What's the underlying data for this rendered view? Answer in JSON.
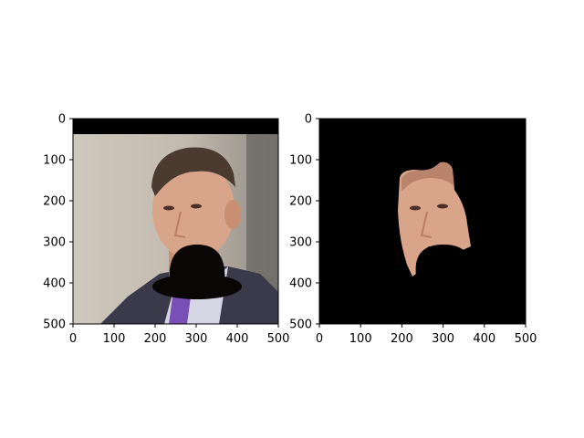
{
  "colors": {
    "background": "#ffffff",
    "axis": "#000000",
    "mask_fill": "#000000",
    "hat_fill": "#0b0606",
    "photo_top": "#c7c0b5",
    "photo_bottom": "#b9b2a5",
    "wall_dark": "#6f6b66",
    "suit": "#3b3a4a",
    "shirt": "#d6d5e3",
    "tie": "#7a4fb5",
    "skin": "#d9a58a",
    "skin_shade": "#bb7f63",
    "hair": "#4a3a2f"
  },
  "chart_data": [
    {
      "type": "image",
      "panel": "left",
      "content": "face photo with black bar at top and black hat overlay on lower face",
      "xlim": [
        0,
        500
      ],
      "ylim": [
        500,
        0
      ],
      "xticks": [
        0,
        100,
        200,
        300,
        400,
        500
      ],
      "yticks": [
        0,
        100,
        200,
        300,
        400,
        500
      ],
      "black_bar_y_range": [
        0,
        38
      ],
      "face_box": {
        "x": [
          180,
          380
        ],
        "y": [
          70,
          360
        ]
      },
      "hat": {
        "crown_center_x": 300,
        "crown_top_y": 305,
        "brim_y": 405,
        "brim_x_range": [
          195,
          410
        ]
      }
    },
    {
      "type": "image",
      "panel": "right",
      "content": "segmented face region on black background, hat region masked out",
      "xlim": [
        0,
        500
      ],
      "ylim": [
        500,
        0
      ],
      "xticks": [
        0,
        100,
        200,
        300,
        400,
        500
      ],
      "yticks": [
        0,
        100,
        200,
        300,
        400,
        500
      ],
      "face_region_x_range": [
        190,
        375
      ],
      "face_region_y_range": [
        105,
        385
      ]
    }
  ]
}
